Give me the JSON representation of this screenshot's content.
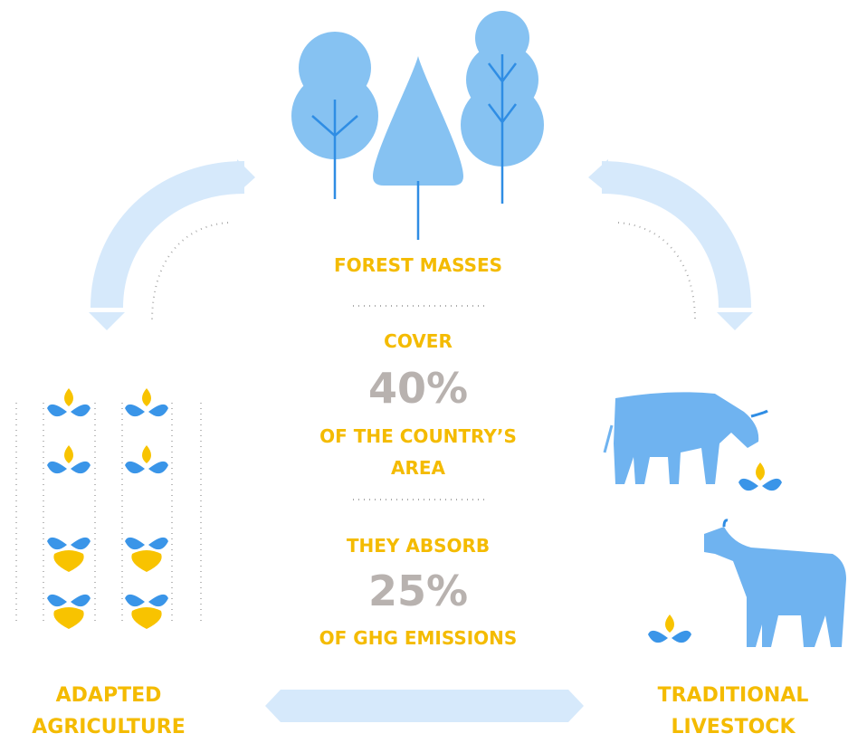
{
  "center": {
    "title": "FOREST MASSES",
    "cover_label": "COVER",
    "cover_value": "40%",
    "cover_caption": "OF THE COUNTRY’S AREA",
    "absorb_label": "THEY ABSORB",
    "absorb_value": "25%",
    "absorb_caption": "OF GHG EMISSIONS"
  },
  "left": {
    "label": "ADAPTED AGRICULTURE"
  },
  "right": {
    "label": "TRADITIONAL LIVESTOCK"
  }
}
